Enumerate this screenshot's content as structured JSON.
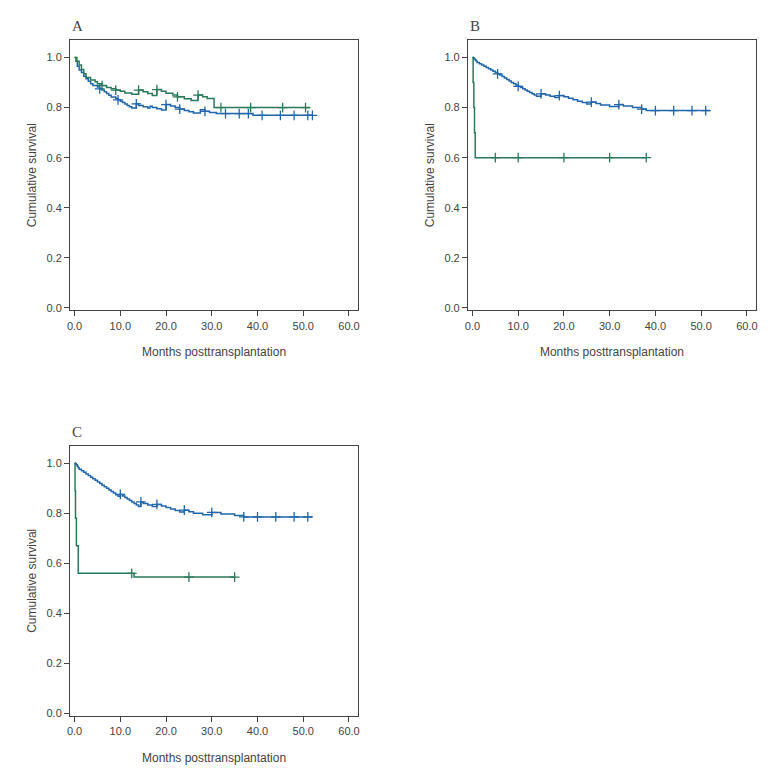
{
  "chart_data": [
    {
      "type": "step",
      "title": "A",
      "xlabel": "Months posttransplantation",
      "ylabel": "Cumulative survival",
      "xlim": [
        -1,
        62
      ],
      "ylim": [
        -0.01,
        1.07
      ],
      "xticks": [
        {
          "value": 0.0,
          "label": "0.0"
        },
        {
          "value": 10.0,
          "label": "10.0"
        },
        {
          "value": 20.0,
          "label": "20.0"
        },
        {
          "value": 30.0,
          "label": "30.0"
        },
        {
          "value": 40.0,
          "label": "40.0"
        },
        {
          "value": 50.0,
          "label": "50.0"
        },
        {
          "value": 60.0,
          "label": "60.0"
        }
      ],
      "yticks": [
        {
          "value": 0.0,
          "label": "0.0"
        },
        0.2,
        0.4,
        0.6,
        0.8,
        {
          "value": 1.0,
          "label": "1.0"
        }
      ],
      "grid": false,
      "series": [
        {
          "color": "#2166ac",
          "x": [
            0,
            0.3,
            0.6,
            1.0,
            1.5,
            2.0,
            2.5,
            3.0,
            3.5,
            4.0,
            5.0,
            5.5,
            6.0,
            6.5,
            7.0,
            7.5,
            8.0,
            9.0,
            9.5,
            10.0,
            10.5,
            11.0,
            11.5,
            12.0,
            12.5,
            13.5,
            14.0,
            15.0,
            16.0,
            16.5,
            17.0,
            18.0,
            19.0,
            20.0,
            21.0,
            22.0,
            23.0,
            24.0,
            25.0,
            26.0,
            27.5,
            28.5,
            29.5,
            31.0,
            33.0,
            34.0,
            36.0,
            38.0,
            39.0,
            41.0,
            43.0,
            45.0,
            47.0,
            49.0,
            51.0,
            52.0
          ],
          "values": [
            1.0,
            0.985,
            0.965,
            0.95,
            0.94,
            0.925,
            0.915,
            0.905,
            0.895,
            0.888,
            0.882,
            0.875,
            0.87,
            0.863,
            0.856,
            0.849,
            0.842,
            0.836,
            0.831,
            0.825,
            0.82,
            0.814,
            0.808,
            0.803,
            0.798,
            0.815,
            0.808,
            0.803,
            0.798,
            0.805,
            0.8,
            0.795,
            0.79,
            0.812,
            0.806,
            0.8,
            0.794,
            0.788,
            0.783,
            0.778,
            0.791,
            0.785,
            0.78,
            0.776,
            0.776,
            0.776,
            0.776,
            0.776,
            0.769,
            0.769,
            0.769,
            0.769,
            0.769,
            0.769,
            0.769,
            0.769
          ]
        },
        {
          "color": "#2166ac",
          "type": "scatter",
          "marker": "plus",
          "x": [
            5.5,
            9.5,
            13.5,
            20.0,
            23.0,
            28.5,
            33.0,
            36.0,
            38.0,
            41.0,
            45.0,
            48.0,
            51.0,
            52.0
          ],
          "values": [
            0.875,
            0.831,
            0.815,
            0.812,
            0.794,
            0.785,
            0.776,
            0.776,
            0.776,
            0.769,
            0.769,
            0.769,
            0.769,
            0.769
          ]
        },
        {
          "color": "#2a7a5a",
          "x": [
            0,
            0.5,
            1.0,
            1.5,
            2.0,
            2.5,
            3.5,
            4.5,
            5.0,
            6.0,
            7.0,
            8.0,
            9.0,
            10.0,
            11.0,
            12.5,
            14.0,
            15.0,
            16.0,
            17.0,
            18.0,
            19.0,
            20.0,
            21.5,
            22.5,
            24.0,
            25.5,
            27.0,
            28.0,
            29.0,
            30.5,
            32.0,
            35.0,
            38.5,
            40.5,
            43.0,
            45.5,
            47.5,
            50.5,
            51.5
          ],
          "values": [
            1.0,
            0.985,
            0.97,
            0.952,
            0.935,
            0.92,
            0.91,
            0.903,
            0.895,
            0.888,
            0.88,
            0.875,
            0.87,
            0.865,
            0.858,
            0.853,
            0.87,
            0.863,
            0.856,
            0.848,
            0.872,
            0.865,
            0.857,
            0.85,
            0.843,
            0.835,
            0.828,
            0.85,
            0.843,
            0.836,
            0.8,
            0.8,
            0.8,
            0.8,
            0.8,
            0.8,
            0.8,
            0.8,
            0.8,
            0.8
          ]
        },
        {
          "color": "#2a7a5a",
          "type": "scatter",
          "marker": "plus",
          "x": [
            6.0,
            9.0,
            14.0,
            18.0,
            22.5,
            27.0,
            32.0,
            38.5,
            45.5,
            50.5
          ],
          "values": [
            0.888,
            0.87,
            0.87,
            0.872,
            0.843,
            0.85,
            0.8,
            0.8,
            0.8,
            0.8
          ]
        }
      ]
    },
    {
      "type": "step",
      "title": "B",
      "xlabel": "Months posttransplantation",
      "ylabel": "Cumulative survival",
      "xlim": [
        -1,
        62
      ],
      "ylim": [
        -0.01,
        1.07
      ],
      "xticks": [
        {
          "value": 0.0,
          "label": "0.0"
        },
        {
          "value": 10.0,
          "label": "10.0"
        },
        {
          "value": 20.0,
          "label": "20.0"
        },
        {
          "value": 30.0,
          "label": "30.0"
        },
        {
          "value": 40.0,
          "label": "40.0"
        },
        {
          "value": 50.0,
          "label": "50.0"
        },
        {
          "value": 60.0,
          "label": "60.0"
        }
      ],
      "yticks": [
        {
          "value": 0.0,
          "label": "0.0"
        },
        0.2,
        0.4,
        0.6,
        0.8,
        {
          "value": 1.0,
          "label": "1.0"
        }
      ],
      "grid": false,
      "series": [
        {
          "color": "#2166ac",
          "x": [
            0,
            0.2,
            0.4,
            0.6,
            0.8,
            1.0,
            1.5,
            2.0,
            2.5,
            3.0,
            3.5,
            4.0,
            4.5,
            5.0,
            5.5,
            6.0,
            6.5,
            7.0,
            7.5,
            8.0,
            8.5,
            9.0,
            9.5,
            10.0,
            10.5,
            11.0,
            11.5,
            12.0,
            12.5,
            13.0,
            13.5,
            14.0,
            15.0,
            16.0,
            17.0,
            18.0,
            19.0,
            20.0,
            21.0,
            22.0,
            23.0,
            24.0,
            25.0,
            26.0,
            27.0,
            28.0,
            30.0,
            32.0,
            33.0,
            35.0,
            37.0,
            38.0,
            39.0,
            40.0,
            42.0,
            44.0,
            46.0,
            48.0,
            50.0,
            51.0,
            52.0
          ],
          "values": [
            1.0,
            0.998,
            0.994,
            0.99,
            0.986,
            0.98,
            0.975,
            0.97,
            0.965,
            0.96,
            0.955,
            0.95,
            0.945,
            0.94,
            0.935,
            0.93,
            0.924,
            0.918,
            0.912,
            0.906,
            0.9,
            0.895,
            0.89,
            0.885,
            0.88,
            0.875,
            0.87,
            0.865,
            0.86,
            0.855,
            0.85,
            0.845,
            0.855,
            0.85,
            0.845,
            0.84,
            0.848,
            0.843,
            0.837,
            0.831,
            0.825,
            0.82,
            0.814,
            0.822,
            0.816,
            0.81,
            0.804,
            0.812,
            0.806,
            0.8,
            0.794,
            0.788,
            0.788,
            0.788,
            0.788,
            0.788,
            0.788,
            0.788,
            0.788,
            0.788,
            0.788
          ]
        },
        {
          "color": "#2166ac",
          "type": "scatter",
          "marker": "plus",
          "x": [
            5.5,
            10.0,
            15.0,
            19.0,
            26.0,
            32.0,
            37.0,
            40.0,
            44.0,
            48.0,
            51.0
          ],
          "values": [
            0.935,
            0.885,
            0.855,
            0.848,
            0.822,
            0.812,
            0.794,
            0.788,
            0.788,
            0.788,
            0.788
          ]
        },
        {
          "color": "#2a7a5a",
          "x": [
            0,
            0.15,
            0.3,
            0.45,
            0.6,
            38.0
          ],
          "values": [
            1.0,
            0.9,
            0.8,
            0.7,
            0.6,
            0.6
          ]
        },
        {
          "color": "#2a7a5a",
          "type": "scatter",
          "marker": "plus",
          "x": [
            5.0,
            10.0,
            20.0,
            30.0,
            38.0
          ],
          "values": [
            0.6,
            0.6,
            0.6,
            0.6,
            0.6
          ]
        }
      ]
    },
    {
      "type": "step",
      "title": "C",
      "xlabel": "Months posttransplantation",
      "ylabel": "Cumulative survival",
      "xlim": [
        -1,
        62
      ],
      "ylim": [
        -0.01,
        1.07
      ],
      "xticks": [
        {
          "value": 0.0,
          "label": "0.0"
        },
        {
          "value": 10.0,
          "label": "10.0"
        },
        {
          "value": 20.0,
          "label": "20.0"
        },
        {
          "value": 30.0,
          "label": "30.0"
        },
        {
          "value": 40.0,
          "label": "40.0"
        },
        {
          "value": 50.0,
          "label": "50.0"
        },
        {
          "value": 60.0,
          "label": "60.0"
        }
      ],
      "yticks": [
        {
          "value": 0.0,
          "label": "0.0"
        },
        0.2,
        0.4,
        0.6,
        0.8,
        {
          "value": 1.0,
          "label": "1.0"
        }
      ],
      "grid": false,
      "series": [
        {
          "color": "#2166ac",
          "x": [
            0,
            0.2,
            0.4,
            0.6,
            0.8,
            1.0,
            1.5,
            2.0,
            2.5,
            3.0,
            3.5,
            4.0,
            4.5,
            5.0,
            5.5,
            6.0,
            6.5,
            7.0,
            7.5,
            8.0,
            8.5,
            9.0,
            9.5,
            10.0,
            10.5,
            11.0,
            11.5,
            12.0,
            12.5,
            13.0,
            13.5,
            14.0,
            14.5,
            15.0,
            16.0,
            17.0,
            18.0,
            19.0,
            20.0,
            21.0,
            22.0,
            23.0,
            24.0,
            25.0,
            26.0,
            28.0,
            30.0,
            32.0,
            35.0,
            37.0,
            38.0,
            40.0,
            42.0,
            44.0,
            46.0,
            48.0,
            50.0,
            51.0,
            52.0
          ],
          "values": [
            1.0,
            0.998,
            0.994,
            0.988,
            0.982,
            0.976,
            0.97,
            0.964,
            0.957,
            0.951,
            0.944,
            0.938,
            0.932,
            0.925,
            0.919,
            0.912,
            0.906,
            0.9,
            0.893,
            0.887,
            0.881,
            0.874,
            0.868,
            0.875,
            0.869,
            0.863,
            0.857,
            0.851,
            0.845,
            0.839,
            0.833,
            0.827,
            0.845,
            0.839,
            0.833,
            0.827,
            0.835,
            0.829,
            0.823,
            0.817,
            0.811,
            0.805,
            0.812,
            0.806,
            0.8,
            0.794,
            0.803,
            0.797,
            0.791,
            0.785,
            0.785,
            0.785,
            0.785,
            0.785,
            0.785,
            0.785,
            0.785,
            0.785,
            0.785
          ]
        },
        {
          "color": "#2166ac",
          "type": "scatter",
          "marker": "plus",
          "x": [
            10.0,
            14.5,
            18.0,
            24.0,
            30.0,
            37.0,
            40.0,
            44.0,
            48.0,
            51.0
          ],
          "values": [
            0.875,
            0.845,
            0.835,
            0.812,
            0.803,
            0.785,
            0.785,
            0.785,
            0.785,
            0.785
          ]
        },
        {
          "color": "#2a7a5a",
          "x": [
            0,
            0.1,
            0.2,
            0.4,
            0.8,
            12.5,
            13.0,
            35.0
          ],
          "values": [
            1.0,
            0.89,
            0.78,
            0.67,
            0.56,
            0.56,
            0.545,
            0.545
          ]
        },
        {
          "color": "#2a7a5a",
          "type": "scatter",
          "marker": "plus",
          "x": [
            12.5,
            25.0,
            35.0
          ],
          "values": [
            0.56,
            0.545,
            0.545
          ]
        }
      ]
    }
  ]
}
